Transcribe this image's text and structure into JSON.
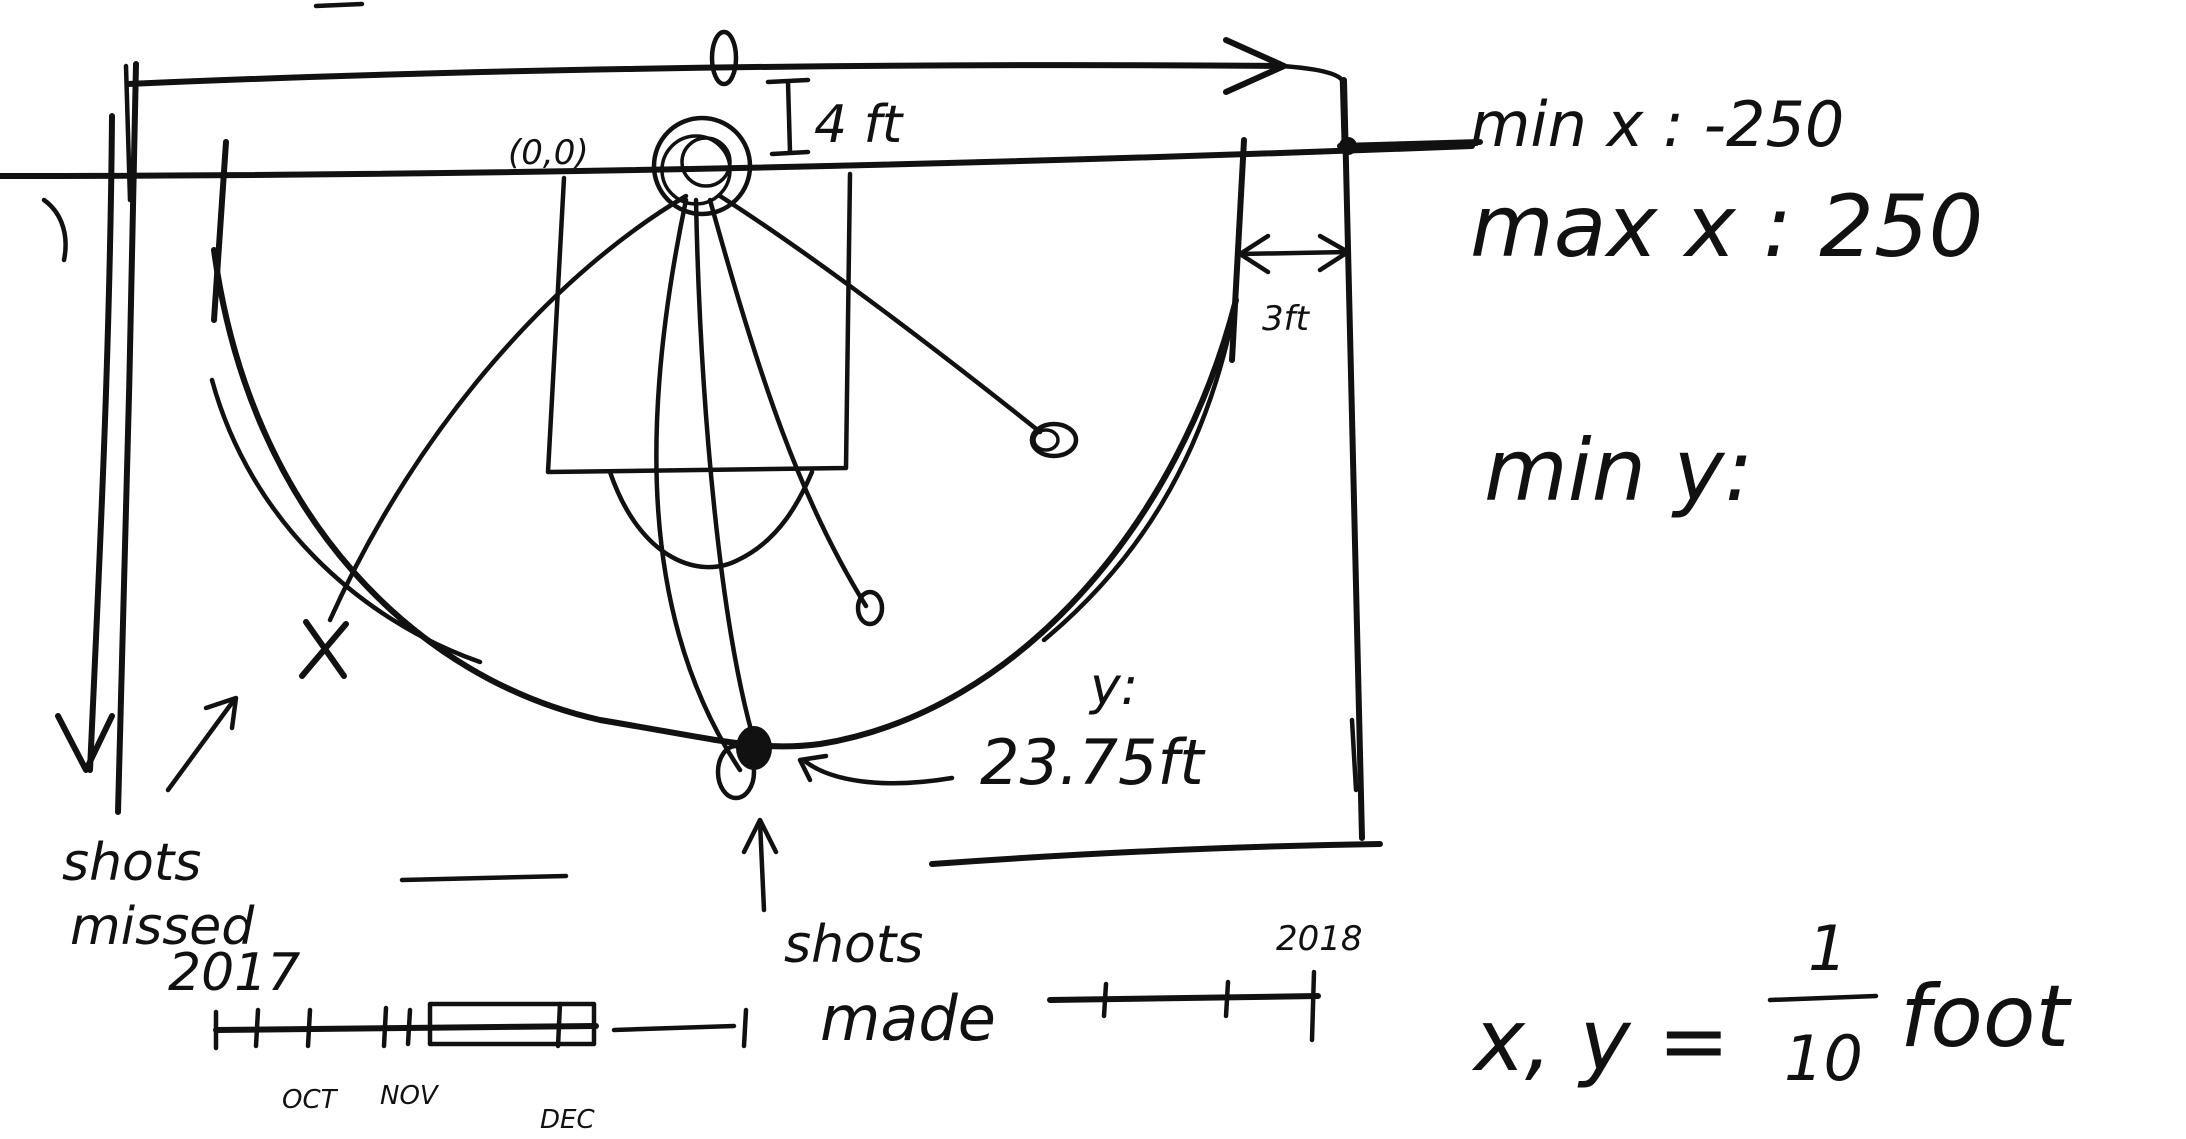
{
  "annotations": {
    "origin_label": "(0,0)",
    "hoop_offset": "4 ft",
    "corner_offset": "3ft",
    "three_point_radius": "23.75ft",
    "y_label": "y:",
    "min_x": "min x : -250",
    "max_x": "max x : 250",
    "min_y": "min y:",
    "units_lhs": "x, y =",
    "units_numerator": "1",
    "units_denominator": "10",
    "units_rhs": "foot",
    "shots_missed": [
      "shots",
      "missed"
    ],
    "shots_made": [
      "shots",
      "made"
    ],
    "miss_marker": "X"
  },
  "timeline": {
    "start_year": "2017",
    "end_year": "2018",
    "months": [
      "OCT",
      "NOV",
      "DEC"
    ]
  },
  "ink_color": "#111111"
}
